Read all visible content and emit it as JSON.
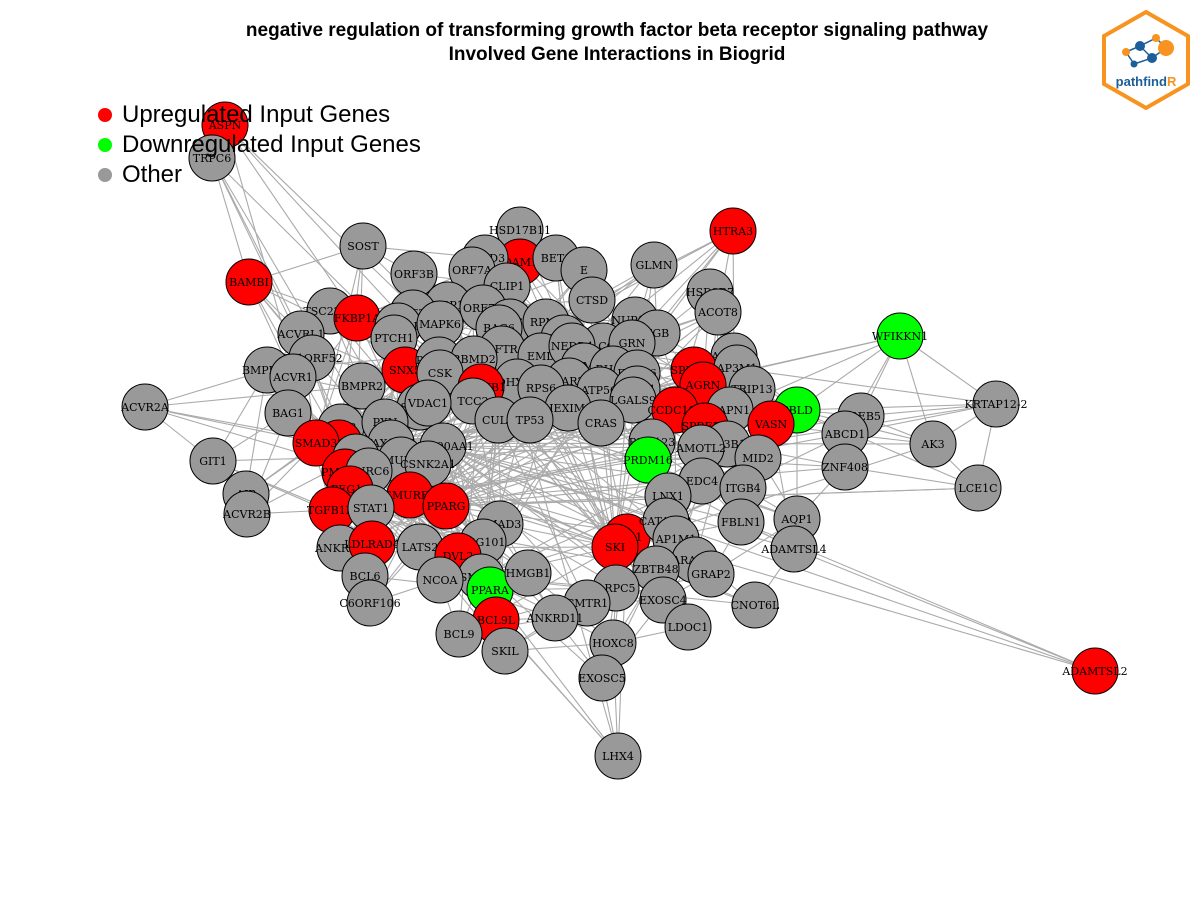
{
  "title_line1": "negative regulation of transforming growth factor beta receptor signaling pathway",
  "title_line2": "Involved Gene Interactions in Biogrid",
  "legend": [
    {
      "label": "Upregulated Input Genes",
      "color": "#ff0000"
    },
    {
      "label": "Downregulated Input Genes",
      "color": "#00ff00"
    },
    {
      "label": "Other",
      "color": "#999999"
    }
  ],
  "logo": {
    "text_main": "pathfind",
    "text_accent": "R",
    "border_color": "#f7931e",
    "accent_color": "#f7931e",
    "text_color": "#1b5e9a"
  },
  "colors": {
    "up": "#ff0000",
    "down": "#00ff00",
    "other": "#999999",
    "edge": "#aaaaaa"
  },
  "network": {
    "nodes": [
      {
        "id": "ASPN",
        "s": "up"
      },
      {
        "id": "TRPC6",
        "s": "o"
      },
      {
        "id": "HSD17B11",
        "s": "o"
      },
      {
        "id": "HTRA3",
        "s": "up"
      },
      {
        "id": "ADAM17",
        "s": "up"
      },
      {
        "id": "SOST",
        "s": "o"
      },
      {
        "id": "ACBD3",
        "s": "o"
      },
      {
        "id": "BET1",
        "s": "o"
      },
      {
        "id": "E",
        "s": "o"
      },
      {
        "id": "GLMN",
        "s": "o"
      },
      {
        "id": "BAMBI",
        "s": "up"
      },
      {
        "id": "ORF3B",
        "s": "o"
      },
      {
        "id": "ORF7A",
        "s": "o"
      },
      {
        "id": "CLIP1",
        "s": "o"
      },
      {
        "id": "HSD3B7",
        "s": "o"
      },
      {
        "id": "TSC22D1",
        "s": "o"
      },
      {
        "id": "FKBP1A",
        "s": "up"
      },
      {
        "id": "NSP1",
        "s": "o"
      },
      {
        "id": "ORF7B",
        "s": "o"
      },
      {
        "id": "CTSD",
        "s": "o"
      },
      {
        "id": "ACOT8",
        "s": "o"
      },
      {
        "id": "ACVRL1",
        "s": "o"
      },
      {
        "id": "ORF3A",
        "s": "o"
      },
      {
        "id": "ACTR1B",
        "s": "o"
      },
      {
        "id": "MAPK6",
        "s": "o"
      },
      {
        "id": "PRRG4",
        "s": "o"
      },
      {
        "id": "RPN2",
        "s": "o"
      },
      {
        "id": "NUP160",
        "s": "o"
      },
      {
        "id": "FGB",
        "s": "o"
      },
      {
        "id": "WFIKKN1",
        "s": "down"
      },
      {
        "id": "PTCH1",
        "s": "o"
      },
      {
        "id": "BAG6",
        "s": "o"
      },
      {
        "id": "COPS",
        "s": "o"
      },
      {
        "id": "PLCG1",
        "s": "o"
      },
      {
        "id": "GRN",
        "s": "o"
      },
      {
        "id": "APPBP2",
        "s": "o"
      },
      {
        "id": "C11ORF52",
        "s": "o"
      },
      {
        "id": "CFTR",
        "s": "o"
      },
      {
        "id": "EMD",
        "s": "o"
      },
      {
        "id": "NEDD4",
        "s": "o"
      },
      {
        "id": "BMPR1B",
        "s": "o"
      },
      {
        "id": "ACVR1",
        "s": "o"
      },
      {
        "id": "SNX5",
        "s": "up"
      },
      {
        "id": "PRKAA1",
        "s": "o"
      },
      {
        "id": "CAD",
        "s": "o"
      },
      {
        "id": "RBMD2",
        "s": "o"
      },
      {
        "id": "MAIMB2",
        "s": "o"
      },
      {
        "id": "RHOB",
        "s": "o"
      },
      {
        "id": "FBXO6",
        "s": "o"
      },
      {
        "id": "SPRED1",
        "s": "up"
      },
      {
        "id": "AP3M1",
        "s": "o"
      },
      {
        "id": "CSK",
        "s": "o"
      },
      {
        "id": "BMPR2",
        "s": "o"
      },
      {
        "id": "AAR2",
        "s": "o"
      },
      {
        "id": "AGRN",
        "s": "up"
      },
      {
        "id": "TRIP13",
        "s": "o"
      },
      {
        "id": "ACVR2A",
        "s": "o"
      },
      {
        "id": "DHX12",
        "s": "o"
      },
      {
        "id": "CTNNB1",
        "s": "up"
      },
      {
        "id": "RPS6",
        "s": "o"
      },
      {
        "id": "ATP5O",
        "s": "o"
      },
      {
        "id": "BLZF1",
        "s": "o"
      },
      {
        "id": "KRTAP12-2",
        "s": "o"
      },
      {
        "id": "CREB5",
        "s": "o"
      },
      {
        "id": "PBLD",
        "s": "down"
      },
      {
        "id": "BAG1",
        "s": "o"
      },
      {
        "id": "TCC2",
        "s": "o"
      },
      {
        "id": "CSNK2A2",
        "s": "o"
      },
      {
        "id": "VDAC1",
        "s": "o"
      },
      {
        "id": "HEXIM1",
        "s": "o"
      },
      {
        "id": "LGALS9",
        "s": "o"
      },
      {
        "id": "CCDC109",
        "s": "up"
      },
      {
        "id": "CAPN1",
        "s": "o"
      },
      {
        "id": "VASN",
        "s": "up"
      },
      {
        "id": "ABCD1",
        "s": "o"
      },
      {
        "id": "BCL2",
        "s": "o"
      },
      {
        "id": "PXN",
        "s": "o"
      },
      {
        "id": "SMAD7",
        "s": "up"
      },
      {
        "id": "TAX1BP1",
        "s": "o"
      },
      {
        "id": "CUL1",
        "s": "o"
      },
      {
        "id": "TP53",
        "s": "o"
      },
      {
        "id": "CRAS",
        "s": "o"
      },
      {
        "id": "SPRED2",
        "s": "up"
      },
      {
        "id": "AK3",
        "s": "o"
      },
      {
        "id": "GIT1",
        "s": "o"
      },
      {
        "id": "SMAD3",
        "s": "up"
      },
      {
        "id": "HSP90AA1",
        "s": "o"
      },
      {
        "id": "RNF123",
        "s": "o"
      },
      {
        "id": "AP3B1",
        "s": "o"
      },
      {
        "id": "MID2",
        "s": "o"
      },
      {
        "id": "ZNF408",
        "s": "o"
      },
      {
        "id": "ACTB",
        "s": "o"
      },
      {
        "id": "SMURF1",
        "s": "o"
      },
      {
        "id": "CSNK2A1",
        "s": "o"
      },
      {
        "id": "PRDM16",
        "s": "down"
      },
      {
        "id": "AMOTL2",
        "s": "o"
      },
      {
        "id": "PMEPA1",
        "s": "up"
      },
      {
        "id": "TNRC6",
        "s": "o"
      },
      {
        "id": "EDC4",
        "s": "o"
      },
      {
        "id": "LCE1C",
        "s": "o"
      },
      {
        "id": "AIP",
        "s": "o"
      },
      {
        "id": "PEG10",
        "s": "up"
      },
      {
        "id": "SMURF2",
        "s": "up"
      },
      {
        "id": "LNX1",
        "s": "o"
      },
      {
        "id": "ITGB4",
        "s": "o"
      },
      {
        "id": "ACVR2B",
        "s": "o"
      },
      {
        "id": "TGFB1I1",
        "s": "up"
      },
      {
        "id": "STAT1",
        "s": "o"
      },
      {
        "id": "PPARG",
        "s": "up"
      },
      {
        "id": "SMAD3B",
        "s": "o"
      },
      {
        "id": "FXR1",
        "s": "up"
      },
      {
        "id": "CATAD2A",
        "s": "o"
      },
      {
        "id": "FBLN1",
        "s": "o"
      },
      {
        "id": "AQP1",
        "s": "o"
      },
      {
        "id": "ANKRD1",
        "s": "o"
      },
      {
        "id": "LDLRAD4",
        "s": "up"
      },
      {
        "id": "LATS2",
        "s": "o"
      },
      {
        "id": "TSG101",
        "s": "o"
      },
      {
        "id": "SKI",
        "s": "up"
      },
      {
        "id": "AP1M1",
        "s": "o"
      },
      {
        "id": "ADAMTSL4",
        "s": "o"
      },
      {
        "id": "BCL6",
        "s": "o"
      },
      {
        "id": "DVL2",
        "s": "up"
      },
      {
        "id": "SMAD4",
        "s": "o"
      },
      {
        "id": "ARAP13",
        "s": "o"
      },
      {
        "id": "ZBTB48",
        "s": "o"
      },
      {
        "id": "GRAP2",
        "s": "o"
      },
      {
        "id": "NCOA",
        "s": "o"
      },
      {
        "id": "PPARA",
        "s": "down"
      },
      {
        "id": "HMGB1",
        "s": "o"
      },
      {
        "id": "ARPC5",
        "s": "o"
      },
      {
        "id": "C6ORF106",
        "s": "o"
      },
      {
        "id": "CMTR1",
        "s": "o"
      },
      {
        "id": "EXOSC4",
        "s": "o"
      },
      {
        "id": "CNOT6L",
        "s": "o"
      },
      {
        "id": "BCL9L",
        "s": "up"
      },
      {
        "id": "BCL9",
        "s": "o"
      },
      {
        "id": "ANKRD11",
        "s": "o"
      },
      {
        "id": "HOXC8",
        "s": "o"
      },
      {
        "id": "LDOC1",
        "s": "o"
      },
      {
        "id": "ADAMTSL2",
        "s": "up"
      },
      {
        "id": "SKIL",
        "s": "o"
      },
      {
        "id": "EXOSC5",
        "s": "o"
      },
      {
        "id": "LHX4",
        "s": "o"
      }
    ]
  }
}
